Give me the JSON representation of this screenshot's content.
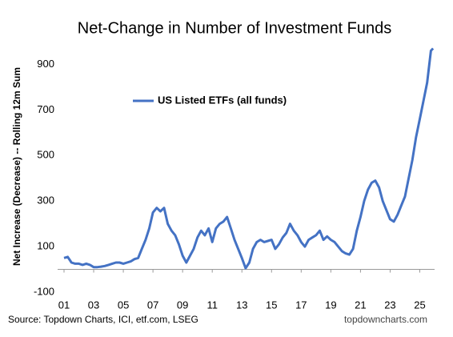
{
  "chart_data": {
    "type": "line",
    "title": "Net-Change in Number of Investment Funds",
    "y_label": "Net Increase (Decrease) -- Rolling 12m Sum",
    "source": "Source: Topdown Charts, ICI, etf.com, LSEG",
    "watermark": "topdowncharts.com",
    "legend": "upper left",
    "x": [
      2001,
      2001.25,
      2001.5,
      2001.75,
      2002,
      2002.25,
      2002.5,
      2002.75,
      2003,
      2003.25,
      2003.5,
      2003.75,
      2004,
      2004.25,
      2004.5,
      2004.75,
      2005,
      2005.25,
      2005.5,
      2005.75,
      2006,
      2006.25,
      2006.5,
      2006.75,
      2007,
      2007.25,
      2007.5,
      2007.75,
      2008,
      2008.25,
      2008.5,
      2008.75,
      2009,
      2009.25,
      2009.5,
      2009.75,
      2010,
      2010.25,
      2010.5,
      2010.75,
      2011,
      2011.25,
      2011.5,
      2011.75,
      2012,
      2012.25,
      2012.5,
      2012.75,
      2013,
      2013.25,
      2013.5,
      2013.75,
      2014,
      2014.25,
      2014.5,
      2014.75,
      2015,
      2015.25,
      2015.5,
      2015.75,
      2016,
      2016.25,
      2016.5,
      2016.75,
      2017,
      2017.25,
      2017.5,
      2017.75,
      2018,
      2018.25,
      2018.5,
      2018.75,
      2019,
      2019.25,
      2019.5,
      2019.75,
      2020,
      2020.25,
      2020.5,
      2020.75,
      2021,
      2021.25,
      2021.5,
      2021.75,
      2022,
      2022.25,
      2022.5,
      2022.75,
      2023,
      2023.25,
      2023.5,
      2023.75,
      2024,
      2024.25,
      2024.5,
      2024.75,
      2025,
      2025.25,
      2025.5,
      2025.75,
      2025.9
    ],
    "series": [
      {
        "name": "US Listed ETFs (all funds)",
        "color": "#4472c4",
        "values": [
          50,
          55,
          30,
          25,
          25,
          20,
          25,
          20,
          10,
          10,
          12,
          15,
          20,
          25,
          30,
          30,
          25,
          30,
          35,
          45,
          50,
          90,
          130,
          180,
          250,
          270,
          255,
          270,
          200,
          170,
          150,
          110,
          60,
          30,
          60,
          90,
          140,
          170,
          150,
          180,
          120,
          180,
          200,
          210,
          230,
          180,
          130,
          90,
          50,
          5,
          30,
          90,
          120,
          130,
          120,
          125,
          130,
          90,
          110,
          140,
          160,
          200,
          170,
          150,
          120,
          100,
          130,
          140,
          150,
          170,
          130,
          145,
          130,
          120,
          100,
          80,
          70,
          65,
          90,
          170,
          230,
          300,
          350,
          380,
          390,
          360,
          300,
          260,
          220,
          210,
          240,
          280,
          320,
          400,
          480,
          580,
          660,
          740,
          820,
          960,
          970
        ]
      }
    ],
    "xlim": [
      2001,
      2026
    ],
    "xticks": [
      {
        "value": 2001,
        "label": "01"
      },
      {
        "value": 2003,
        "label": "03"
      },
      {
        "value": 2005,
        "label": "05"
      },
      {
        "value": 2007,
        "label": "07"
      },
      {
        "value": 2009,
        "label": "09"
      },
      {
        "value": 2011,
        "label": "11"
      },
      {
        "value": 2013,
        "label": "13"
      },
      {
        "value": 2015,
        "label": "15"
      },
      {
        "value": 2017,
        "label": "17"
      },
      {
        "value": 2019,
        "label": "19"
      },
      {
        "value": 2021,
        "label": "21"
      },
      {
        "value": 2023,
        "label": "23"
      },
      {
        "value": 2025,
        "label": "25"
      }
    ],
    "ylim": [
      -100,
      1000
    ],
    "yticks": [
      -100,
      100,
      300,
      500,
      700,
      900
    ]
  }
}
